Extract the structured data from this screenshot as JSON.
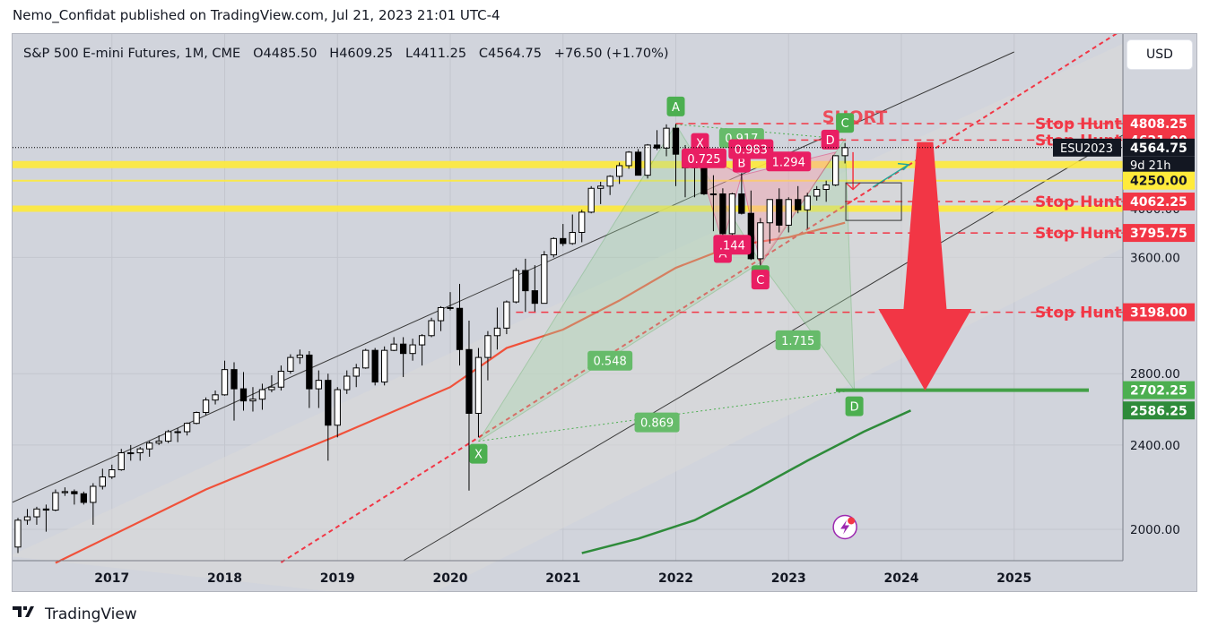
{
  "header": {
    "published": "Nemo_Confidat published on TradingView.com, Jul 21, 2023 21:01 UTC-4"
  },
  "legend": {
    "symbol": "S&P 500 E-mini Futures, 1M, CME",
    "open_label": "O",
    "open": "4485.50",
    "high_label": "H",
    "high": "4609.25",
    "low_label": "L",
    "low": "4411.25",
    "close_label": "C",
    "close": "4564.75",
    "change": "+76.50 (+1.70%)"
  },
  "currency_button": "USD",
  "footer": {
    "brand": "TradingView",
    "logo": "tradingview-logo-icon"
  },
  "colors": {
    "up": "#ffffff",
    "down": "#000000",
    "yellow": "#ffeb3b",
    "red": "#f23645",
    "green": "#4caf50",
    "ema_red": "#f0513a",
    "ma_green": "#2e8b3a"
  },
  "chart_data": {
    "type": "candlestick",
    "interval": "1M",
    "x_range": [
      "2016-03",
      "2025-12"
    ],
    "x_ticks": [
      "2017",
      "2018",
      "2019",
      "2020",
      "2021",
      "2022",
      "2023",
      "2024",
      "2025"
    ],
    "y_scale": "log",
    "y_range": [
      1880,
      5400
    ],
    "y_ticks": [
      "2000.00",
      "2400.00",
      "2800.00",
      "3600.00",
      "4000.00"
    ],
    "candles": [
      {
        "t": "2016-03",
        "o": 1925,
        "h": 2050,
        "l": 1900,
        "c": 2040
      },
      {
        "t": "2016-04",
        "o": 2040,
        "h": 2090,
        "l": 2020,
        "c": 2055
      },
      {
        "t": "2016-05",
        "o": 2055,
        "h": 2100,
        "l": 2020,
        "c": 2090
      },
      {
        "t": "2016-06",
        "o": 2090,
        "h": 2110,
        "l": 1990,
        "c": 2085
      },
      {
        "t": "2016-07",
        "o": 2085,
        "h": 2180,
        "l": 2080,
        "c": 2165
      },
      {
        "t": "2016-08",
        "o": 2165,
        "h": 2190,
        "l": 2150,
        "c": 2170
      },
      {
        "t": "2016-09",
        "o": 2170,
        "h": 2180,
        "l": 2110,
        "c": 2160
      },
      {
        "t": "2016-10",
        "o": 2160,
        "h": 2170,
        "l": 2110,
        "c": 2120
      },
      {
        "t": "2016-11",
        "o": 2120,
        "h": 2210,
        "l": 2020,
        "c": 2195
      },
      {
        "t": "2016-12",
        "o": 2195,
        "h": 2280,
        "l": 2180,
        "c": 2240
      },
      {
        "t": "2017-01",
        "o": 2240,
        "h": 2300,
        "l": 2230,
        "c": 2275
      },
      {
        "t": "2017-02",
        "o": 2275,
        "h": 2380,
        "l": 2270,
        "c": 2360
      },
      {
        "t": "2017-03",
        "o": 2360,
        "h": 2400,
        "l": 2320,
        "c": 2360
      },
      {
        "t": "2017-04",
        "o": 2360,
        "h": 2390,
        "l": 2320,
        "c": 2380
      },
      {
        "t": "2017-05",
        "o": 2380,
        "h": 2420,
        "l": 2340,
        "c": 2410
      },
      {
        "t": "2017-06",
        "o": 2410,
        "h": 2450,
        "l": 2400,
        "c": 2420
      },
      {
        "t": "2017-07",
        "o": 2420,
        "h": 2480,
        "l": 2410,
        "c": 2470
      },
      {
        "t": "2017-08",
        "o": 2470,
        "h": 2490,
        "l": 2415,
        "c": 2470
      },
      {
        "t": "2017-09",
        "o": 2470,
        "h": 2520,
        "l": 2450,
        "c": 2515
      },
      {
        "t": "2017-10",
        "o": 2515,
        "h": 2580,
        "l": 2510,
        "c": 2575
      },
      {
        "t": "2017-11",
        "o": 2575,
        "h": 2660,
        "l": 2560,
        "c": 2645
      },
      {
        "t": "2017-12",
        "o": 2645,
        "h": 2700,
        "l": 2620,
        "c": 2675
      },
      {
        "t": "2018-01",
        "o": 2675,
        "h": 2880,
        "l": 2670,
        "c": 2825
      },
      {
        "t": "2018-02",
        "o": 2825,
        "h": 2870,
        "l": 2530,
        "c": 2710
      },
      {
        "t": "2018-03",
        "o": 2710,
        "h": 2810,
        "l": 2585,
        "c": 2640
      },
      {
        "t": "2018-04",
        "o": 2640,
        "h": 2720,
        "l": 2580,
        "c": 2650
      },
      {
        "t": "2018-05",
        "o": 2650,
        "h": 2740,
        "l": 2590,
        "c": 2705
      },
      {
        "t": "2018-06",
        "o": 2705,
        "h": 2790,
        "l": 2690,
        "c": 2720
      },
      {
        "t": "2018-07",
        "o": 2720,
        "h": 2850,
        "l": 2700,
        "c": 2815
      },
      {
        "t": "2018-08",
        "o": 2815,
        "h": 2920,
        "l": 2800,
        "c": 2900
      },
      {
        "t": "2018-09",
        "o": 2900,
        "h": 2950,
        "l": 2860,
        "c": 2915
      },
      {
        "t": "2018-10",
        "o": 2915,
        "h": 2940,
        "l": 2600,
        "c": 2710
      },
      {
        "t": "2018-11",
        "o": 2710,
        "h": 2820,
        "l": 2600,
        "c": 2760
      },
      {
        "t": "2018-12",
        "o": 2760,
        "h": 2800,
        "l": 2320,
        "c": 2505
      },
      {
        "t": "2019-01",
        "o": 2505,
        "h": 2720,
        "l": 2440,
        "c": 2705
      },
      {
        "t": "2019-02",
        "o": 2705,
        "h": 2820,
        "l": 2680,
        "c": 2785
      },
      {
        "t": "2019-03",
        "o": 2785,
        "h": 2860,
        "l": 2720,
        "c": 2835
      },
      {
        "t": "2019-04",
        "o": 2835,
        "h": 2955,
        "l": 2830,
        "c": 2945
      },
      {
        "t": "2019-05",
        "o": 2945,
        "h": 2960,
        "l": 2730,
        "c": 2750
      },
      {
        "t": "2019-06",
        "o": 2750,
        "h": 2970,
        "l": 2730,
        "c": 2945
      },
      {
        "t": "2019-07",
        "o": 2945,
        "h": 3030,
        "l": 2940,
        "c": 2985
      },
      {
        "t": "2019-08",
        "o": 2985,
        "h": 3030,
        "l": 2780,
        "c": 2925
      },
      {
        "t": "2019-09",
        "o": 2925,
        "h": 3020,
        "l": 2880,
        "c": 2980
      },
      {
        "t": "2019-10",
        "o": 2980,
        "h": 3050,
        "l": 2850,
        "c": 3040
      },
      {
        "t": "2019-11",
        "o": 3040,
        "h": 3160,
        "l": 3030,
        "c": 3140
      },
      {
        "t": "2019-12",
        "o": 3140,
        "h": 3240,
        "l": 3070,
        "c": 3230
      },
      {
        "t": "2020-01",
        "o": 3230,
        "h": 3340,
        "l": 3210,
        "c": 3225
      },
      {
        "t": "2020-02",
        "o": 3225,
        "h": 3400,
        "l": 2850,
        "c": 2950
      },
      {
        "t": "2020-03",
        "o": 2950,
        "h": 3140,
        "l": 2175,
        "c": 2570
      },
      {
        "t": "2020-04",
        "o": 2570,
        "h": 2960,
        "l": 2440,
        "c": 2900
      },
      {
        "t": "2020-05",
        "o": 2900,
        "h": 3070,
        "l": 2760,
        "c": 3040
      },
      {
        "t": "2020-06",
        "o": 3040,
        "h": 3230,
        "l": 2950,
        "c": 3090
      },
      {
        "t": "2020-07",
        "o": 3090,
        "h": 3280,
        "l": 3050,
        "c": 3270
      },
      {
        "t": "2020-08",
        "o": 3270,
        "h": 3520,
        "l": 3260,
        "c": 3500
      },
      {
        "t": "2020-09",
        "o": 3500,
        "h": 3590,
        "l": 3200,
        "c": 3350
      },
      {
        "t": "2020-10",
        "o": 3350,
        "h": 3540,
        "l": 3200,
        "c": 3260
      },
      {
        "t": "2020-11",
        "o": 3260,
        "h": 3650,
        "l": 3260,
        "c": 3620
      },
      {
        "t": "2020-12",
        "o": 3620,
        "h": 3760,
        "l": 3600,
        "c": 3750
      },
      {
        "t": "2021-01",
        "o": 3750,
        "h": 3870,
        "l": 3690,
        "c": 3710
      },
      {
        "t": "2021-02",
        "o": 3710,
        "h": 3950,
        "l": 3700,
        "c": 3800
      },
      {
        "t": "2021-03",
        "o": 3800,
        "h": 3990,
        "l": 3720,
        "c": 3970
      },
      {
        "t": "2021-04",
        "o": 3970,
        "h": 4200,
        "l": 3960,
        "c": 4180
      },
      {
        "t": "2021-05",
        "o": 4180,
        "h": 4240,
        "l": 4040,
        "c": 4200
      },
      {
        "t": "2021-06",
        "o": 4200,
        "h": 4300,
        "l": 4120,
        "c": 4290
      },
      {
        "t": "2021-07",
        "o": 4290,
        "h": 4420,
        "l": 4220,
        "c": 4390
      },
      {
        "t": "2021-08",
        "o": 4390,
        "h": 4530,
        "l": 4360,
        "c": 4520
      },
      {
        "t": "2021-09",
        "o": 4520,
        "h": 4550,
        "l": 4300,
        "c": 4300
      },
      {
        "t": "2021-10",
        "o": 4300,
        "h": 4600,
        "l": 4270,
        "c": 4590
      },
      {
        "t": "2021-11",
        "o": 4590,
        "h": 4740,
        "l": 4540,
        "c": 4560
      },
      {
        "t": "2021-12",
        "o": 4560,
        "h": 4800,
        "l": 4480,
        "c": 4760
      },
      {
        "t": "2022-01",
        "o": 4760,
        "h": 4808,
        "l": 4200,
        "c": 4500
      },
      {
        "t": "2022-02",
        "o": 4500,
        "h": 4590,
        "l": 4100,
        "c": 4370
      },
      {
        "t": "2022-03",
        "o": 4370,
        "h": 4630,
        "l": 4100,
        "c": 4530
      },
      {
        "t": "2022-04",
        "o": 4530,
        "h": 4590,
        "l": 4120,
        "c": 4130
      },
      {
        "t": "2022-05",
        "o": 4130,
        "h": 4300,
        "l": 3810,
        "c": 4130
      },
      {
        "t": "2022-06",
        "o": 4130,
        "h": 4180,
        "l": 3640,
        "c": 3790
      },
      {
        "t": "2022-07",
        "o": 3790,
        "h": 4140,
        "l": 3720,
        "c": 4130
      },
      {
        "t": "2022-08",
        "o": 4130,
        "h": 4320,
        "l": 3950,
        "c": 3960
      },
      {
        "t": "2022-09",
        "o": 3960,
        "h": 4160,
        "l": 3580,
        "c": 3590
      },
      {
        "t": "2022-10",
        "o": 3590,
        "h": 3920,
        "l": 3500,
        "c": 3880
      },
      {
        "t": "2022-11",
        "o": 3880,
        "h": 4080,
        "l": 3710,
        "c": 4080
      },
      {
        "t": "2022-12",
        "o": 4080,
        "h": 4180,
        "l": 3800,
        "c": 3860
      },
      {
        "t": "2023-01",
        "o": 3860,
        "h": 4100,
        "l": 3800,
        "c": 4080
      },
      {
        "t": "2023-02",
        "o": 4080,
        "h": 4200,
        "l": 3960,
        "c": 3990
      },
      {
        "t": "2023-03",
        "o": 3990,
        "h": 4140,
        "l": 3830,
        "c": 4110
      },
      {
        "t": "2023-04",
        "o": 4110,
        "h": 4200,
        "l": 4070,
        "c": 4170
      },
      {
        "t": "2023-05",
        "o": 4170,
        "h": 4250,
        "l": 4060,
        "c": 4210
      },
      {
        "t": "2023-06",
        "o": 4210,
        "h": 4490,
        "l": 4200,
        "c": 4485
      },
      {
        "t": "2023-07",
        "o": 4485.5,
        "h": 4609.25,
        "l": 4411.25,
        "c": 4564.75
      }
    ],
    "price_labels": [
      {
        "value": "4808.25",
        "color": "#f23645",
        "level": 4808.25
      },
      {
        "value": "4621.00",
        "color": "#f23645",
        "level": 4640
      },
      {
        "value": "4564.75",
        "color": "#131722",
        "level": 4564.75,
        "extra": "9d 21h",
        "tag": "ESU2023"
      },
      {
        "value": "4250.00",
        "color": "#ffeb3b",
        "text_color": "#131722",
        "level": 4250
      },
      {
        "value": "4062.25",
        "color": "#f23645",
        "level": 4062.25
      },
      {
        "value": "3795.75",
        "color": "#f23645",
        "level": 3795.75
      },
      {
        "value": "3198.00",
        "color": "#f23645",
        "level": 3198
      },
      {
        "value": "2702.25",
        "color": "#4caf50",
        "level": 2702.25
      },
      {
        "value": "2586.25",
        "color": "#2e8b3a",
        "level": 2586.25
      }
    ],
    "annotations": {
      "short_label": "SHORT",
      "stop_hunt_label": "Stop Hunt",
      "green_pattern": {
        "points": [
          {
            "label": "X",
            "t": "2020-04",
            "v": 2420
          },
          {
            "label": "A",
            "t": "2022-01",
            "v": 4800
          },
          {
            "label": "B",
            "t": "2022-10",
            "v": 3560
          },
          {
            "label": "C",
            "t": "2023-07",
            "v": 4650
          },
          {
            "label": "D",
            "t": "2023-08",
            "v": 2702
          }
        ],
        "ratios": [
          "0.548",
          "0.917",
          "1.715",
          "0.869"
        ]
      },
      "red_pattern": {
        "points": [
          {
            "label": "X",
            "t": "2022-03",
            "v": 4540
          },
          {
            "label": "A",
            "t": "2022-06",
            "v": 3720
          },
          {
            "label": "B",
            "t": "2022-08",
            "v": 4300
          },
          {
            "label": "C",
            "t": "2022-10",
            "v": 3540
          },
          {
            "label": "D",
            "t": "2023-06",
            "v": 4520
          }
        ],
        "ratios": [
          "0.725",
          "0.983",
          ".144",
          "1.294"
        ]
      }
    }
  }
}
